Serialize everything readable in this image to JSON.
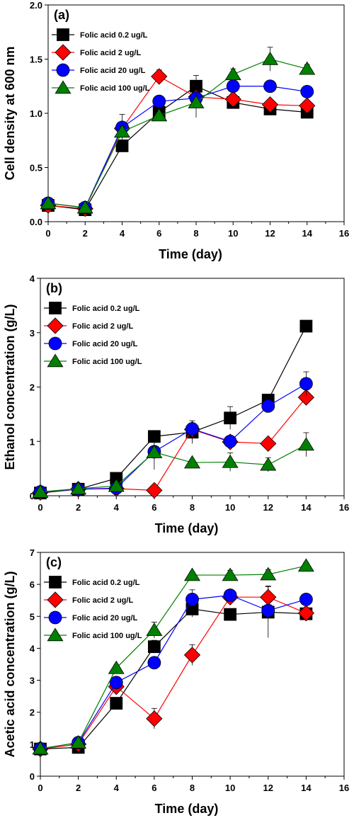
{
  "chart_data": [
    {
      "type": "line",
      "panel_label": "(a)",
      "xlabel": "Time (day)",
      "ylabel": "Cell density at 600 nm",
      "xlim": [
        0,
        16
      ],
      "ylim": [
        0,
        2.0
      ],
      "xticks": [
        0,
        2,
        4,
        6,
        8,
        10,
        12,
        14,
        16
      ],
      "xtick_labels": [
        "0",
        "2",
        "4",
        "6",
        "8",
        "10",
        "12",
        "14",
        "16"
      ],
      "yticks": [
        0,
        0.5,
        1.0,
        1.5,
        2.0
      ],
      "ytick_labels": [
        "0.0",
        "0.5",
        "1.0",
        "1.5",
        "2.0"
      ],
      "legend_position": "top-left",
      "grid": false,
      "x": [
        0,
        2,
        4,
        6,
        8,
        10,
        12,
        14
      ],
      "series": [
        {
          "name": "Folic acid 0.2 ug/L",
          "marker": "square",
          "color": "#000000",
          "values": [
            0.15,
            0.11,
            0.7,
            1.01,
            1.25,
            1.1,
            1.04,
            1.01
          ],
          "errors": [
            0.01,
            0.01,
            0.03,
            0.03,
            0.1,
            0.03,
            0.03,
            0.03
          ]
        },
        {
          "name": "Folic acid 2 ug/L",
          "marker": "diamond",
          "color": "#ff0000",
          "values": [
            0.15,
            0.12,
            0.86,
            1.34,
            1.15,
            1.13,
            1.08,
            1.07
          ],
          "errors": [
            0.01,
            0.01,
            0.04,
            0.06,
            0.03,
            0.05,
            0.03,
            0.03
          ]
        },
        {
          "name": "Folic acid 20 ug/L",
          "marker": "circle",
          "color": "#0000ff",
          "values": [
            0.17,
            0.13,
            0.87,
            1.11,
            1.14,
            1.25,
            1.25,
            1.2
          ],
          "errors": [
            0.01,
            0.01,
            0.12,
            0.02,
            0.03,
            0.03,
            0.02,
            0.04
          ]
        },
        {
          "name": "Folic acid 100 ug/L",
          "marker": "triangle",
          "color": "#008000",
          "values": [
            0.17,
            0.13,
            0.83,
            0.98,
            1.1,
            1.36,
            1.5,
            1.41
          ],
          "errors": [
            0.01,
            0.01,
            0.05,
            0.02,
            0.14,
            0.05,
            0.11,
            0.04
          ]
        }
      ]
    },
    {
      "type": "line",
      "panel_label": "(b)",
      "xlabel": "Time (day)",
      "ylabel": "Ethanol concentration (g/L)",
      "xlim": [
        0,
        16
      ],
      "ylim": [
        0,
        4
      ],
      "xticks": [
        0,
        2,
        4,
        6,
        8,
        10,
        12,
        14,
        16
      ],
      "xtick_labels": [
        "0",
        "2",
        "4",
        "6",
        "8",
        "10",
        "12",
        "14",
        "16"
      ],
      "yticks": [
        0,
        1,
        2,
        3,
        4
      ],
      "ytick_labels": [
        "0",
        "1",
        "2",
        "3",
        "4"
      ],
      "legend_position": "top-left",
      "grid": false,
      "x": [
        0,
        2,
        4,
        6,
        8,
        10,
        12,
        14
      ],
      "series": [
        {
          "name": "Folic acid 0.2 ug/L",
          "marker": "square",
          "color": "#000000",
          "values": [
            0.05,
            0.12,
            0.32,
            1.09,
            1.17,
            1.43,
            1.76,
            3.12
          ],
          "errors": [
            0.01,
            0.02,
            0.04,
            0.08,
            0.21,
            0.21,
            0.06,
            0.1
          ]
        },
        {
          "name": "Folic acid 2 ug/L",
          "marker": "diamond",
          "color": "#ff0000",
          "values": [
            0.06,
            0.12,
            0.13,
            0.1,
            1.22,
            0.99,
            0.96,
            1.81
          ],
          "errors": [
            0.01,
            0.02,
            0.03,
            0.02,
            0.12,
            0.08,
            0.05,
            0.08
          ]
        },
        {
          "name": "Folic acid 20 ug/L",
          "marker": "circle",
          "color": "#0000ff",
          "values": [
            0.07,
            0.12,
            0.14,
            0.81,
            1.23,
            1.0,
            1.65,
            2.06
          ],
          "errors": [
            0.01,
            0.02,
            0.03,
            0.33,
            0.1,
            0.08,
            0.06,
            0.22
          ]
        },
        {
          "name": "Folic acid 100 ug/L",
          "marker": "triangle",
          "color": "#008000",
          "values": [
            0.07,
            0.13,
            0.18,
            0.8,
            0.61,
            0.62,
            0.57,
            0.94
          ],
          "errors": [
            0.01,
            0.02,
            0.03,
            0.1,
            0.05,
            0.17,
            0.13,
            0.22
          ]
        }
      ]
    },
    {
      "type": "line",
      "panel_label": "(c)",
      "xlabel": "Time (day)",
      "ylabel": "Acetic acid concentration (g/L)",
      "xlim": [
        0,
        16
      ],
      "ylim": [
        0,
        7
      ],
      "xticks": [
        0,
        2,
        4,
        6,
        8,
        10,
        12,
        14,
        16
      ],
      "xtick_labels": [
        "0",
        "2",
        "4",
        "6",
        "8",
        "10",
        "12",
        "14",
        "16"
      ],
      "yticks": [
        0,
        1,
        2,
        3,
        4,
        5,
        6,
        7
      ],
      "ytick_labels": [
        "0",
        "1",
        "2",
        "3",
        "4",
        "5",
        "6",
        "7"
      ],
      "legend_position": "top-left",
      "grid": false,
      "x": [
        0,
        2,
        4,
        6,
        8,
        10,
        12,
        14
      ],
      "series": [
        {
          "name": "Folic acid 0.2 ug/L",
          "marker": "square",
          "color": "#000000",
          "values": [
            0.85,
            0.9,
            2.28,
            4.05,
            5.23,
            5.06,
            5.13,
            5.08
          ],
          "errors": [
            0.03,
            0.05,
            0.1,
            0.2,
            0.25,
            0.1,
            0.8,
            0.1
          ]
        },
        {
          "name": "Folic acid 2 ug/L",
          "marker": "diamond",
          "color": "#ff0000",
          "values": [
            0.85,
            1.0,
            2.8,
            1.8,
            3.79,
            5.6,
            5.6,
            5.1
          ],
          "errors": [
            0.03,
            0.05,
            0.1,
            0.32,
            0.32,
            0.15,
            0.35,
            0.1
          ]
        },
        {
          "name": "Folic acid 20 ug/L",
          "marker": "circle",
          "color": "#0000ff",
          "values": [
            0.86,
            1.05,
            2.93,
            3.55,
            5.53,
            5.66,
            5.18,
            5.53
          ],
          "errors": [
            0.03,
            0.05,
            0.1,
            0.1,
            0.3,
            0.1,
            0.15,
            0.1
          ]
        },
        {
          "name": "Folic acid 100 ug/L",
          "marker": "triangle",
          "color": "#008000",
          "values": [
            0.86,
            1.05,
            3.38,
            4.57,
            6.29,
            6.29,
            6.31,
            6.58
          ],
          "errors": [
            0.03,
            0.05,
            0.1,
            0.25,
            0.1,
            0.15,
            0.15,
            0.1
          ]
        }
      ]
    }
  ]
}
